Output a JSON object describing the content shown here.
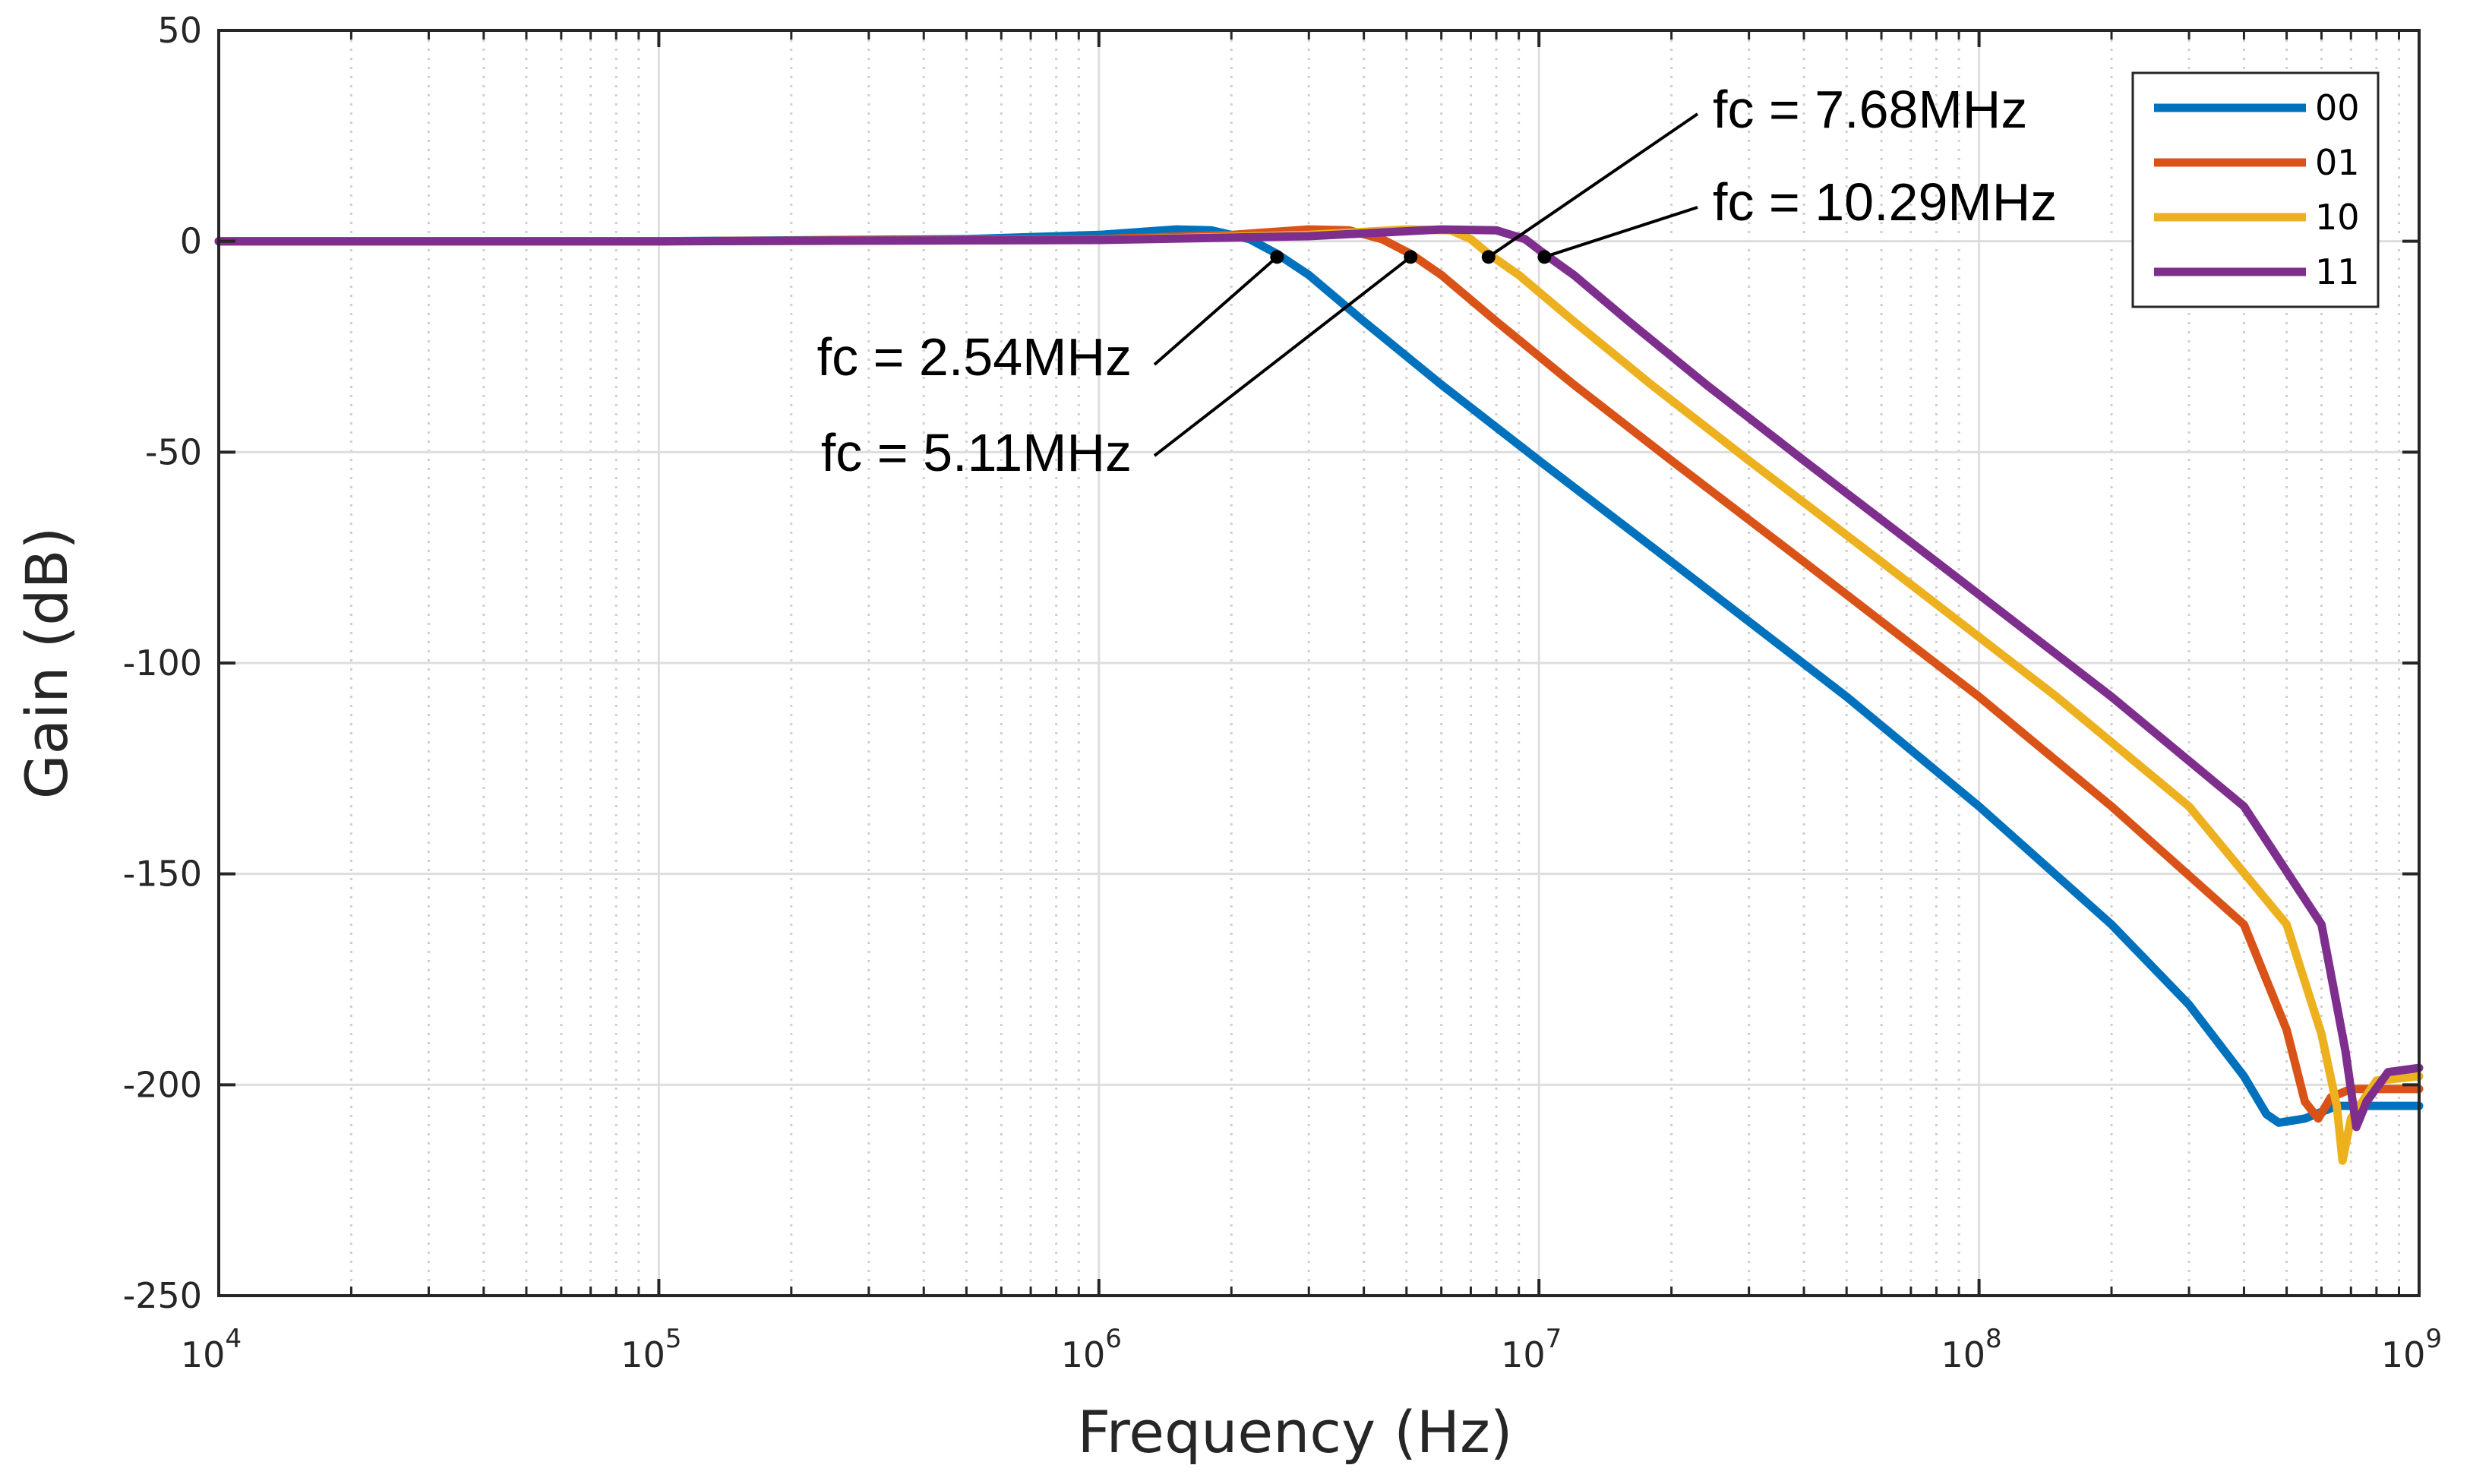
{
  "chart_data": {
    "type": "line",
    "title": "",
    "xlabel": "Frequency (Hz)",
    "ylabel": "Gain (dB)",
    "xscale": "log",
    "xlim": [
      10000,
      1000000000
    ],
    "ylim": [
      -250,
      50
    ],
    "xticks": [
      {
        "value": 10000,
        "base": "10",
        "exp": "4"
      },
      {
        "value": 100000,
        "base": "10",
        "exp": "5"
      },
      {
        "value": 1000000,
        "base": "10",
        "exp": "6"
      },
      {
        "value": 10000000,
        "base": "10",
        "exp": "7"
      },
      {
        "value": 100000000,
        "base": "10",
        "exp": "8"
      },
      {
        "value": 1000000000,
        "base": "10",
        "exp": "9"
      }
    ],
    "yticks": [
      50,
      0,
      -50,
      -100,
      -150,
      -200,
      -250
    ],
    "grid": true,
    "legend_position": "top-right",
    "series": [
      {
        "name": "00",
        "color": "#0072BD",
        "fc_label": "fc = 2.54MHz",
        "fc": 2540000,
        "points": [
          [
            10000,
            0
          ],
          [
            100000,
            0
          ],
          [
            500000,
            0.5
          ],
          [
            1000000,
            1.5
          ],
          [
            1500000,
            2.8
          ],
          [
            1800000,
            2.6
          ],
          [
            2200000,
            0.5
          ],
          [
            2540000,
            -3
          ],
          [
            3000000,
            -8
          ],
          [
            4000000,
            -19
          ],
          [
            6000000,
            -34
          ],
          [
            10000000,
            -52
          ],
          [
            20000000,
            -76
          ],
          [
            50000000,
            -108
          ],
          [
            100000000,
            -134
          ],
          [
            200000000,
            -162
          ],
          [
            300000000,
            -181
          ],
          [
            400000000,
            -198
          ],
          [
            450000000,
            -207
          ],
          [
            480000000,
            -209
          ],
          [
            550000000,
            -208
          ],
          [
            650000000,
            -205
          ],
          [
            1000000000,
            -205
          ]
        ]
      },
      {
        "name": "01",
        "color": "#D95319",
        "fc_label": "fc = 5.11MHz",
        "fc": 5110000,
        "points": [
          [
            10000,
            0
          ],
          [
            100000,
            0
          ],
          [
            1000000,
            0.5
          ],
          [
            2000000,
            1.5
          ],
          [
            3000000,
            2.8
          ],
          [
            3700000,
            2.6
          ],
          [
            4400000,
            0.5
          ],
          [
            5110000,
            -3
          ],
          [
            6000000,
            -8
          ],
          [
            8000000,
            -19
          ],
          [
            12000000,
            -34
          ],
          [
            20000000,
            -52
          ],
          [
            40000000,
            -76
          ],
          [
            100000000,
            -108
          ],
          [
            200000000,
            -134
          ],
          [
            400000000,
            -162
          ],
          [
            500000000,
            -187
          ],
          [
            550000000,
            -204
          ],
          [
            590000000,
            -208
          ],
          [
            630000000,
            -203
          ],
          [
            700000000,
            -201
          ],
          [
            1000000000,
            -201
          ]
        ]
      },
      {
        "name": "10",
        "color": "#EDB120",
        "fc_label": "fc = 7.68MHz",
        "fc": 7680000,
        "points": [
          [
            10000,
            0
          ],
          [
            100000,
            0
          ],
          [
            1000000,
            0.3
          ],
          [
            3000000,
            1.5
          ],
          [
            5000000,
            2.8
          ],
          [
            6300000,
            2.6
          ],
          [
            7000000,
            0.5
          ],
          [
            7680000,
            -3
          ],
          [
            9000000,
            -8
          ],
          [
            12000000,
            -19
          ],
          [
            18000000,
            -34
          ],
          [
            30000000,
            -52
          ],
          [
            60000000,
            -76
          ],
          [
            150000000,
            -108
          ],
          [
            300000000,
            -134
          ],
          [
            500000000,
            -162
          ],
          [
            600000000,
            -188
          ],
          [
            650000000,
            -205
          ],
          [
            670000000,
            -218
          ],
          [
            700000000,
            -208
          ],
          [
            800000000,
            -199
          ],
          [
            1000000000,
            -198
          ]
        ]
      },
      {
        "name": "11",
        "color": "#7E2F8E",
        "fc_label": "fc = 10.29MHz",
        "fc": 10290000,
        "points": [
          [
            10000,
            0
          ],
          [
            100000,
            0
          ],
          [
            1000000,
            0.3
          ],
          [
            3000000,
            1.2
          ],
          [
            6000000,
            2.8
          ],
          [
            8000000,
            2.6
          ],
          [
            9300000,
            0.5
          ],
          [
            10290000,
            -3
          ],
          [
            12000000,
            -8
          ],
          [
            16000000,
            -19
          ],
          [
            24000000,
            -34
          ],
          [
            40000000,
            -52
          ],
          [
            80000000,
            -76
          ],
          [
            200000000,
            -108
          ],
          [
            400000000,
            -134
          ],
          [
            600000000,
            -162
          ],
          [
            680000000,
            -192
          ],
          [
            720000000,
            -210
          ],
          [
            760000000,
            -204
          ],
          [
            850000000,
            -197
          ],
          [
            1000000000,
            -196
          ]
        ]
      }
    ]
  }
}
